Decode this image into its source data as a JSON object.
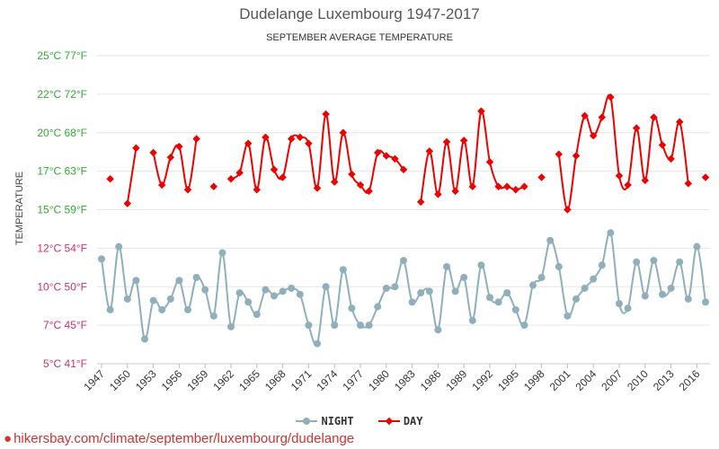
{
  "chart_data": {
    "type": "line",
    "title": "Dudelange Luxembourg 1947-2017",
    "subtitle": "SEPTEMBER AVERAGE TEMPERATURE",
    "ylabel": "TEMPERATURE",
    "ylim": [
      5,
      25
    ],
    "y_ticks": [
      {
        "value": 5,
        "label": "5°C 41°F"
      },
      {
        "value": 7.5,
        "label": "7°C 45°F"
      },
      {
        "value": 10,
        "label": "10°C 50°F"
      },
      {
        "value": 12.5,
        "label": "12°C 54°F"
      },
      {
        "value": 15,
        "label": "15°C 59°F"
      },
      {
        "value": 17.5,
        "label": "17°C 63°F"
      },
      {
        "value": 20,
        "label": "20°C 68°F"
      },
      {
        "value": 22.5,
        "label": "22°C 72°F"
      },
      {
        "value": 25,
        "label": "25°C 77°F"
      }
    ],
    "x_ticks": [
      1947,
      1950,
      1953,
      1956,
      1959,
      1962,
      1965,
      1968,
      1971,
      1974,
      1977,
      1980,
      1983,
      1986,
      1989,
      1992,
      1995,
      1998,
      2001,
      2004,
      2007,
      2010,
      2013,
      2016
    ],
    "xlim": [
      1947,
      2017
    ],
    "grid": true,
    "legend_position": "bottom",
    "colors": {
      "night": "#8fb0ba",
      "day": "#ee0000",
      "y_tick_labels": [
        "#cc3366",
        "#cc3366",
        "#cc3366",
        "#cc3366",
        "#33aa33",
        "#33aa33",
        "#33aa33",
        "#33aa33",
        "#33aa33"
      ]
    },
    "series": [
      {
        "name": "NIGHT",
        "x": [
          1947,
          1948,
          1949,
          1950,
          1951,
          1952,
          1953,
          1954,
          1955,
          1956,
          1957,
          1958,
          1959,
          1960,
          1961,
          1962,
          1963,
          1964,
          1965,
          1966,
          1967,
          1968,
          1969,
          1970,
          1971,
          1972,
          1973,
          1974,
          1975,
          1976,
          1977,
          1978,
          1979,
          1980,
          1981,
          1982,
          1983,
          1984,
          1985,
          1986,
          1987,
          1988,
          1989,
          1990,
          1991,
          1992,
          1993,
          1994,
          1995,
          1996,
          1997,
          1998,
          1999,
          2000,
          2001,
          2002,
          2003,
          2004,
          2005,
          2006,
          2007,
          2008,
          2009,
          2010,
          2011,
          2012,
          2013,
          2014,
          2015,
          2016,
          2017
        ],
        "values": [
          11.8,
          8.5,
          12.6,
          9.2,
          10.4,
          6.6,
          9.1,
          8.5,
          9.2,
          10.4,
          8.5,
          10.6,
          9.8,
          8.1,
          12.2,
          7.4,
          9.6,
          9.0,
          8.2,
          9.8,
          9.4,
          9.7,
          9.9,
          9.5,
          7.5,
          6.3,
          10.0,
          7.5,
          11.1,
          8.6,
          7.5,
          7.5,
          8.7,
          9.9,
          10.0,
          11.7,
          9.0,
          9.6,
          9.7,
          7.2,
          11.3,
          9.7,
          10.6,
          7.8,
          11.4,
          9.3,
          9.0,
          9.6,
          8.5,
          7.5,
          10.1,
          10.6,
          13.0,
          11.3,
          8.1,
          9.2,
          9.9,
          10.5,
          11.4,
          13.5,
          8.9,
          8.6,
          11.6,
          9.4,
          11.7,
          9.5,
          9.9,
          11.6,
          9.2,
          12.6,
          9.0
        ]
      },
      {
        "name": "DAY",
        "x": [
          1948,
          1950,
          1951,
          1953,
          1954,
          1955,
          1956,
          1957,
          1958,
          1960,
          1962,
          1963,
          1964,
          1965,
          1966,
          1967,
          1968,
          1969,
          1970,
          1971,
          1972,
          1973,
          1974,
          1975,
          1976,
          1977,
          1978,
          1979,
          1980,
          1981,
          1982,
          1984,
          1985,
          1986,
          1987,
          1988,
          1989,
          1990,
          1991,
          1992,
          1993,
          1994,
          1995,
          1996,
          1998,
          2000,
          2001,
          2002,
          2003,
          2004,
          2005,
          2006,
          2007,
          2008,
          2009,
          2010,
          2011,
          2012,
          2013,
          2014,
          2015,
          2017
        ],
        "values": [
          17.0,
          15.4,
          19.0,
          18.7,
          16.6,
          18.4,
          19.1,
          16.3,
          19.6,
          16.5,
          17.0,
          17.4,
          19.3,
          16.3,
          19.7,
          17.6,
          17.1,
          19.6,
          19.7,
          19.3,
          16.4,
          21.2,
          16.8,
          20.0,
          17.3,
          16.6,
          16.2,
          18.7,
          18.5,
          18.3,
          17.6,
          15.5,
          18.8,
          16.0,
          19.4,
          16.2,
          19.5,
          16.5,
          21.4,
          18.1,
          16.5,
          16.5,
          16.3,
          16.5,
          17.1,
          18.6,
          15.0,
          18.5,
          21.1,
          19.8,
          21.0,
          22.3,
          17.2,
          16.6,
          20.3,
          16.9,
          21.0,
          19.2,
          18.3,
          20.7,
          16.7,
          17.1
        ]
      }
    ]
  },
  "legend": {
    "night": "NIGHT",
    "day": "DAY"
  },
  "source": {
    "text": "hikersbay.com/climate/september/luxembourg/dudelange"
  }
}
